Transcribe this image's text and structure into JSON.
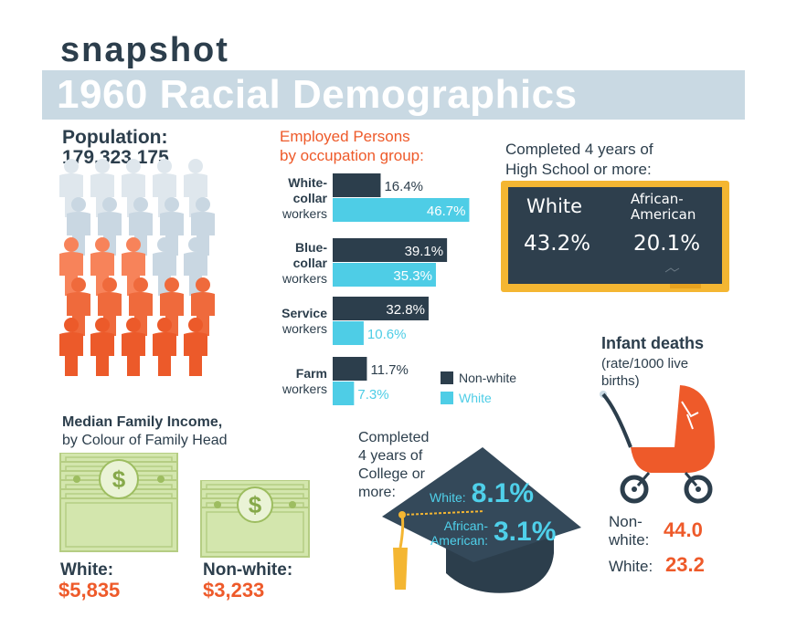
{
  "header": {
    "kicker": "snapshot",
    "title": "1960 Racial Demographics"
  },
  "population": {
    "label": "Population:",
    "value": "179,323,175",
    "icon": "person-icon"
  },
  "chart_data": {
    "type": "bar",
    "orientation": "horizontal",
    "title_line1": "Employed Persons",
    "title_line2": "by occupation group:",
    "categories": [
      {
        "line1": "White-",
        "line2": "collar",
        "line3": "workers"
      },
      {
        "line1": "Blue-",
        "line2": "collar",
        "line3": "workers"
      },
      {
        "line1": "Service",
        "line2": "workers",
        "line3": ""
      },
      {
        "line1": "Farm",
        "line2": "workers",
        "line3": ""
      }
    ],
    "series": [
      {
        "name": "Non-white",
        "color": "#2c3e4c",
        "values": [
          16.4,
          39.1,
          32.8,
          11.7
        ],
        "labels": [
          "16.4%",
          "39.1%",
          "32.8%",
          "11.7%"
        ]
      },
      {
        "name": "White",
        "color": "#4ecde6",
        "values": [
          46.7,
          35.3,
          10.6,
          7.3
        ],
        "labels": [
          "46.7%",
          "35.3%",
          "10.6%",
          "7.3%"
        ]
      }
    ],
    "xlim": [
      0,
      50
    ],
    "legend_position": "bottom-right"
  },
  "high_school": {
    "title_line1": "Completed 4 years of",
    "title_line2": "High School or more:",
    "white_label": "White",
    "white_value": "43.2%",
    "aa_label_line1": "African-",
    "aa_label_line2": "American",
    "aa_value": "20.1%"
  },
  "income": {
    "title_line1": "Median Family Income,",
    "title_line2": "by Colour of Family Head",
    "white_label": "White:",
    "white_value": "$5,835",
    "nonwhite_label": "Non-white:",
    "nonwhite_value": "$3,233",
    "icon": "dollar-bill-icon"
  },
  "college": {
    "title_line1": "Completed",
    "title_line2": "4 years of",
    "title_line3": "College or",
    "title_line4": "more:",
    "white_label": "White:",
    "white_value": "8.1%",
    "aa_label_line1": "African-",
    "aa_label_line2": "American:",
    "aa_value": "3.1%",
    "icon": "graduation-cap-icon"
  },
  "infant": {
    "title": "Infant deaths",
    "sub_line1": "(rate/1000 live",
    "sub_line2": "births)",
    "nonwhite_label_line1": "Non-",
    "nonwhite_label_line2": "white:",
    "nonwhite_value": "44.0",
    "white_label": "White:",
    "white_value": "23.2",
    "icon": "baby-carriage-icon"
  },
  "colors": {
    "dark": "#2c3e4c",
    "cyan": "#4ecde6",
    "orange": "#ee5a2a",
    "light_blue": "#c9d9e3",
    "money_green": "#cfe3a6",
    "chalk_board": "#2c3e4c",
    "chalk_frame": "#f4b632"
  }
}
